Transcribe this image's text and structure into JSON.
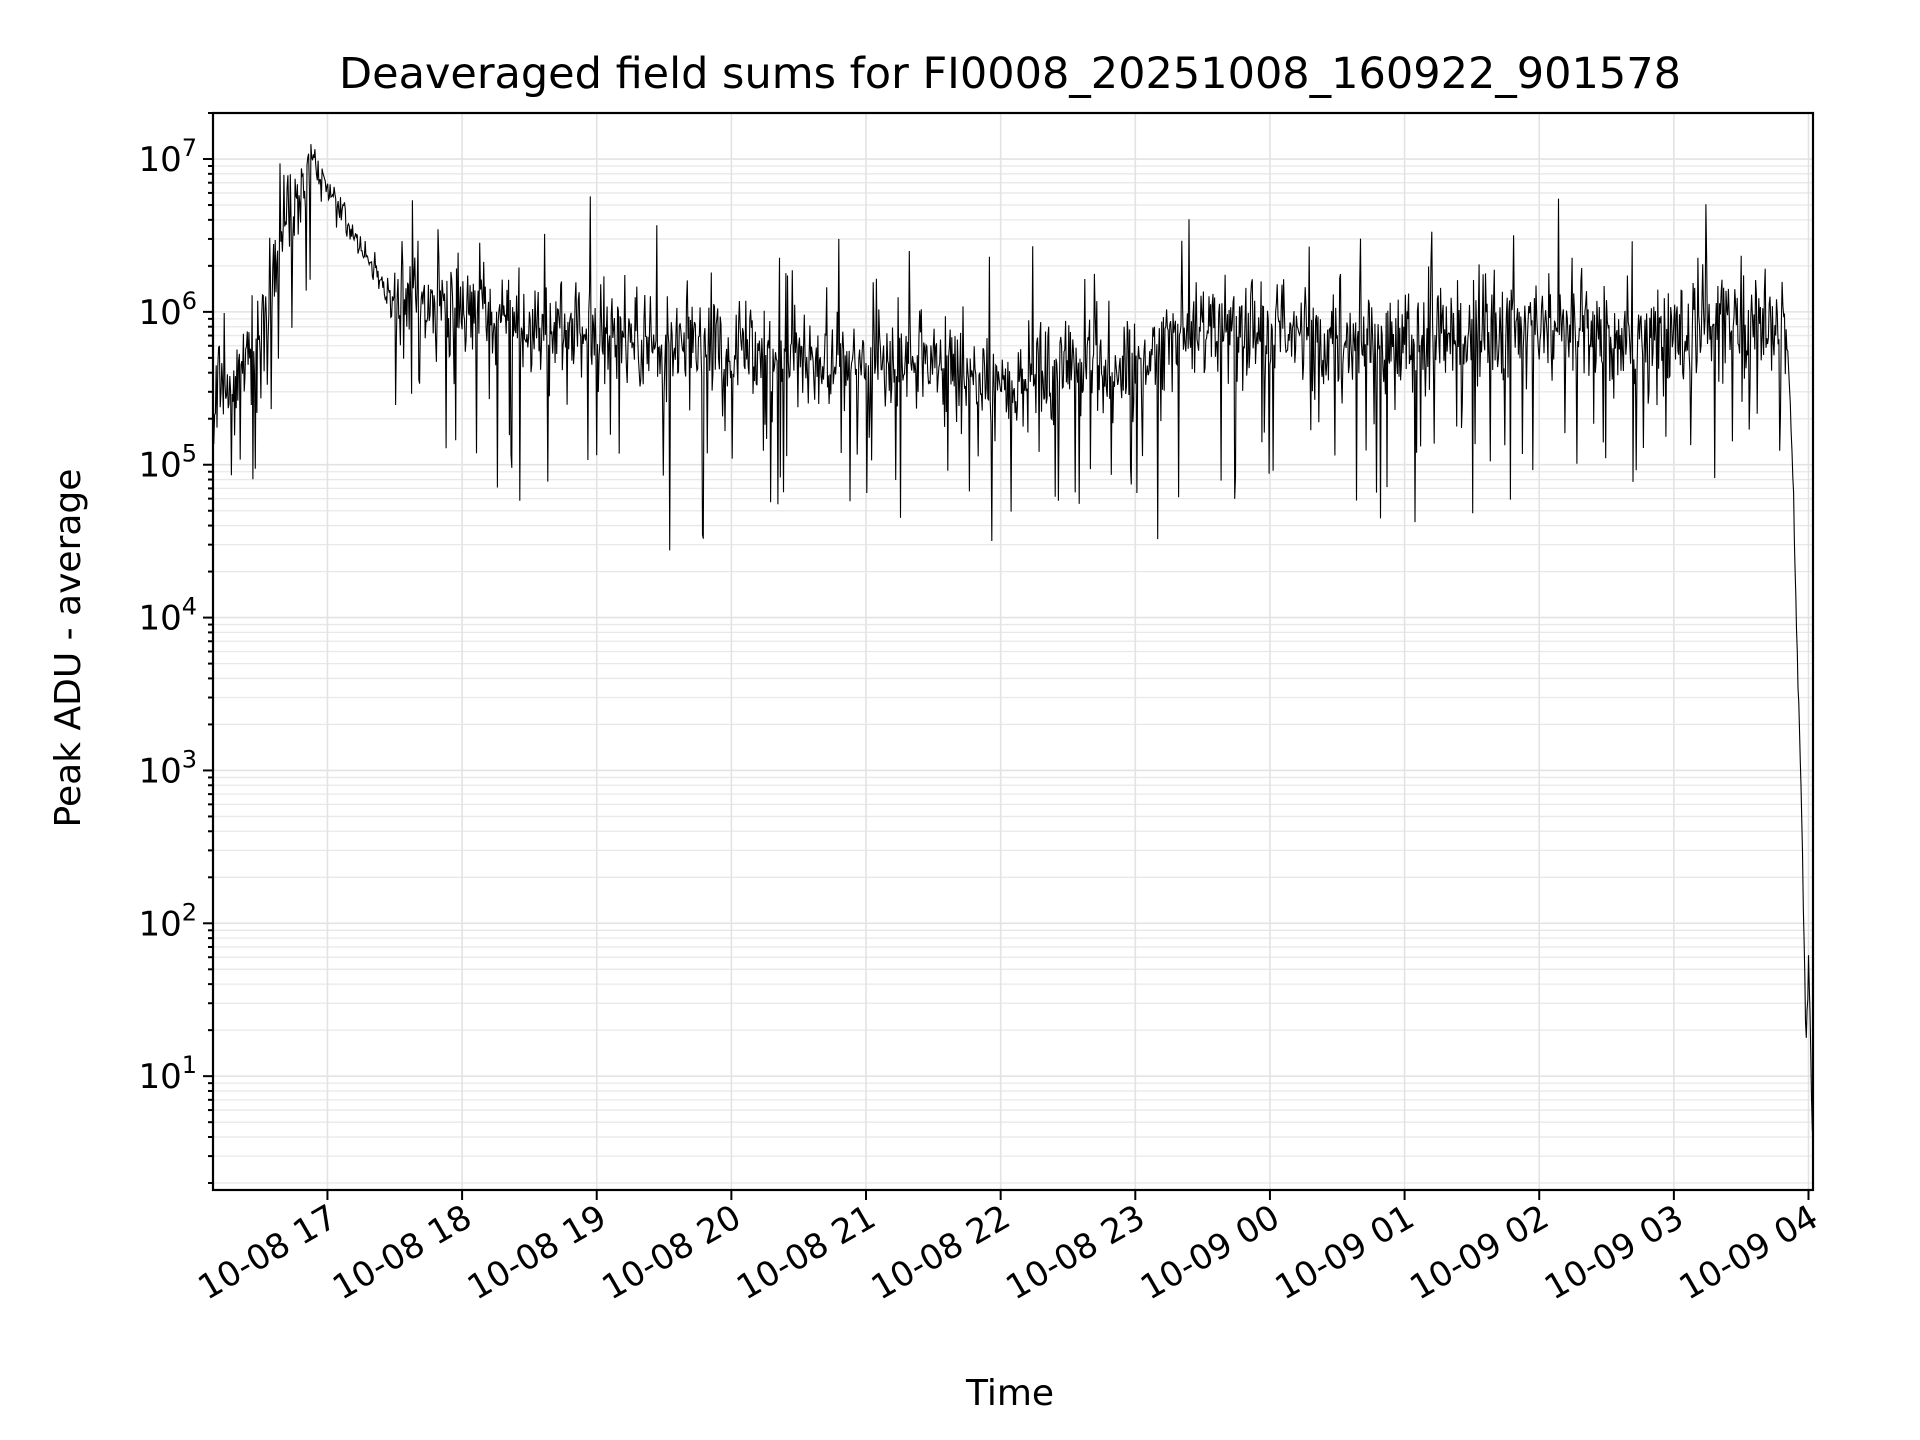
{
  "chart_data": {
    "type": "line",
    "title": "Deaveraged field sums for FI0008_20251008_160922_901578",
    "xlabel": "Time",
    "ylabel": "Peak ADU - average",
    "yscale": "log",
    "grid": true,
    "x_range": [
      "10-08 16:09",
      "10-09 04:02"
    ],
    "ylim": [
      1.8,
      20000000
    ],
    "x_ticks": [
      "10-08 17",
      "10-08 18",
      "10-08 19",
      "10-08 20",
      "10-08 21",
      "10-08 22",
      "10-08 23",
      "10-09 00",
      "10-09 01",
      "10-09 02",
      "10-09 03",
      "10-09 04"
    ],
    "y_ticks": [
      {
        "value": 10,
        "base": "10",
        "exp": "1"
      },
      {
        "value": 100,
        "base": "10",
        "exp": "2"
      },
      {
        "value": 1000,
        "base": "10",
        "exp": "3"
      },
      {
        "value": 10000,
        "base": "10",
        "exp": "4"
      },
      {
        "value": 100000,
        "base": "10",
        "exp": "5"
      },
      {
        "value": 1000000,
        "base": "10",
        "exp": "6"
      },
      {
        "value": 10000000,
        "base": "10",
        "exp": "7"
      }
    ],
    "series": [
      {
        "color": "#000000",
        "x": [
          "10-08 16:09",
          "10-08 16:30",
          "10-08 16:53",
          "10-08 17:30",
          "10-08 18:00",
          "10-08 18:30",
          "10-08 19:00",
          "10-08 19:30",
          "10-08 20:00",
          "10-08 20:30",
          "10-08 21:00",
          "10-08 21:30",
          "10-08 22:00",
          "10-08 22:30",
          "10-08 23:00",
          "10-08 23:30",
          "10-09 00:00",
          "10-09 00:30",
          "10-09 01:00",
          "10-09 01:30",
          "10-09 02:00",
          "10-09 02:30",
          "10-09 03:00",
          "10-09 03:30",
          "10-09 03:50",
          "10-09 03:53",
          "10-09 03:55",
          "10-09 03:57",
          "10-09 03:59",
          "10-09 04:00",
          "10-09 04:02"
        ],
        "y": [
          200000,
          800000,
          10000000,
          1100000,
          1200000,
          800000,
          700000,
          600000,
          550000,
          500000,
          500000,
          450000,
          300000,
          450000,
          400000,
          800000,
          700000,
          600000,
          650000,
          700000,
          800000,
          700000,
          700000,
          800000,
          800000,
          100000,
          5000,
          500,
          15,
          60,
          4
        ]
      }
    ]
  }
}
